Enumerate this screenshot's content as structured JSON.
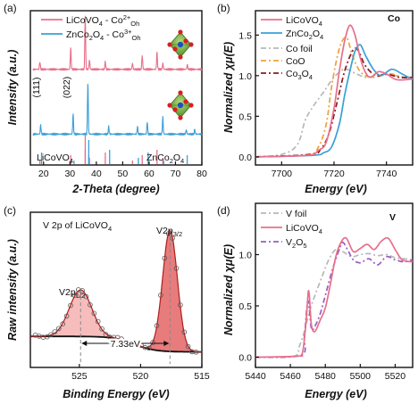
{
  "colors": {
    "pink": "#e86f8a",
    "blue": "#3a9fd8",
    "gray": "#b8b8b8",
    "orange": "#f0a03a",
    "darkred": "#8b1a1a",
    "purple": "#9a5cc0",
    "pink_fill": "#f4a7a7",
    "peak_fill": "#e05050"
  },
  "chart_data": [
    {
      "panel": "(a)",
      "type": "line",
      "xlabel": "2-Theta (degree)",
      "ylabel": "Intensity (a.u.)",
      "xlim": [
        15,
        80
      ],
      "xticks": [
        20,
        30,
        40,
        50,
        60,
        70,
        80
      ],
      "series": [
        {
          "name": "LiCoVO4 - Co2+Oh",
          "legend": [
            "LiCoVO",
            "4",
            " - Co",
            "2+",
            "Oh"
          ],
          "color": "#e86f8a",
          "baseline": 0.62,
          "peaks": [
            [
              18.6,
              0.05
            ],
            [
              30.3,
              0.14
            ],
            [
              35.8,
              0.35
            ],
            [
              37.4,
              0.06
            ],
            [
              43.4,
              0.05
            ],
            [
              53.7,
              0.04
            ],
            [
              57.4,
              0.09
            ],
            [
              63.0,
              0.11
            ],
            [
              65.2,
              0.04
            ],
            [
              74.5,
              0.03
            ]
          ]
        },
        {
          "name": "ZnCo2O4 - Co3+Oh",
          "legend": [
            "ZnCo",
            "2",
            "O",
            "4",
            " - Co",
            "3+",
            "Oh"
          ],
          "color": "#3a9fd8",
          "baseline": 0.2,
          "peaks": [
            [
              18.9,
              0.06
            ],
            [
              31.2,
              0.13
            ],
            [
              36.8,
              0.34
            ],
            [
              44.7,
              0.05
            ],
            [
              55.6,
              0.05
            ],
            [
              59.3,
              0.08
            ],
            [
              65.2,
              0.11
            ],
            [
              74.1,
              0.03
            ],
            [
              77.3,
              0.03
            ]
          ]
        }
      ],
      "reference_ticks": [
        {
          "label": "LiCoVO4",
          "parts": [
            "LiCoVO",
            "4"
          ],
          "color": "#e86f8a",
          "positions": [
            18.6,
            30.3,
            35.8,
            37.4,
            43.4,
            53.7,
            57.4,
            63.0,
            65.2
          ]
        },
        {
          "label": "ZnCo2O4",
          "parts": [
            "ZnCo",
            "2",
            "O",
            "4"
          ],
          "color": "#3a9fd8",
          "positions": [
            18.9,
            31.2,
            36.8,
            44.7,
            55.6,
            59.3,
            65.2,
            74.1
          ]
        }
      ],
      "annotations": [
        "(111)",
        "(022)"
      ]
    },
    {
      "panel": "(b)",
      "type": "line",
      "xlabel": "Energy (eV)",
      "ylabel": "Normalized χμ(E)",
      "xlim": [
        7690,
        7750
      ],
      "ylim": [
        -0.1,
        1.8
      ],
      "xticks": [
        7700,
        7720,
        7740
      ],
      "yticks": [
        "0.0",
        "0.5",
        "1.0",
        "1.5"
      ],
      "element_label": "Co",
      "series": [
        {
          "name": "LiCoVO4",
          "parts": [
            "LiCoVO",
            "4"
          ],
          "color": "#e86f8a",
          "dash": "",
          "x": [
            7690,
            7710,
            7714,
            7717,
            7720,
            7722,
            7724,
            7726,
            7728,
            7730,
            7732,
            7734,
            7737,
            7740,
            7744,
            7750
          ],
          "y": [
            0,
            0.02,
            0.08,
            0.18,
            0.6,
            1.05,
            1.42,
            1.62,
            1.5,
            1.22,
            1.04,
            0.98,
            1.05,
            1.02,
            0.95,
            0.96
          ]
        },
        {
          "name": "ZnCo2O4",
          "parts": [
            "ZnCo",
            "2",
            "O",
            "4"
          ],
          "color": "#3a9fd8",
          "dash": "",
          "x": [
            7690,
            7712,
            7716,
            7719,
            7722,
            7724,
            7726,
            7728,
            7730,
            7732,
            7735,
            7738,
            7742,
            7746,
            7750
          ],
          "y": [
            0,
            0.02,
            0.05,
            0.12,
            0.4,
            0.75,
            1.05,
            1.3,
            1.38,
            1.25,
            1.08,
            1.0,
            1.08,
            1.02,
            0.95
          ]
        },
        {
          "name": "Co foil",
          "parts": [
            "Co foil"
          ],
          "color": "#b8b8b8",
          "dash": "6,3,2,3",
          "x": [
            7690,
            7700,
            7706,
            7709,
            7712,
            7716,
            7720,
            7724,
            7728,
            7732,
            7736,
            7740,
            7745,
            7750
          ],
          "y": [
            0,
            0.03,
            0.15,
            0.45,
            0.62,
            0.8,
            0.98,
            1.08,
            1.03,
            0.98,
            1.0,
            1.02,
            0.99,
            0.98
          ]
        },
        {
          "name": "CoO",
          "parts": [
            "CoO"
          ],
          "color": "#f0a03a",
          "dash": "6,3,2,3",
          "x": [
            7690,
            7710,
            7714,
            7717,
            7719,
            7721,
            7723,
            7725,
            7727,
            7730,
            7734,
            7738,
            7742,
            7746,
            7750
          ],
          "y": [
            0,
            0.03,
            0.12,
            0.4,
            0.85,
            1.2,
            1.42,
            1.46,
            1.25,
            1.05,
            0.98,
            1.0,
            1.02,
            0.98,
            0.97
          ]
        },
        {
          "name": "Co3O4",
          "parts": [
            "Co",
            "3",
            "O",
            "4"
          ],
          "color": "#8b1a1a",
          "dash": "6,3,2,3",
          "x": [
            7690,
            7711,
            7715,
            7718,
            7721,
            7724,
            7727,
            7729,
            7732,
            7736,
            7740,
            7745,
            7750
          ],
          "y": [
            0,
            0.03,
            0.1,
            0.28,
            0.65,
            1.05,
            1.3,
            1.32,
            1.12,
            1.0,
            1.02,
            0.98,
            0.98
          ]
        }
      ]
    },
    {
      "panel": "(c)",
      "type": "line",
      "xlabel": "Binding Energy (eV)",
      "ylabel": "Raw intensity (a.u.)",
      "xlim": [
        529,
        515
      ],
      "xticks": [
        525,
        520,
        515
      ],
      "title_text": [
        "V 2p of LiCoVO",
        "4"
      ],
      "annotations": [
        {
          "main": "V2p",
          "sub": "1/2"
        },
        {
          "main": "V2p",
          "sub": "3/2"
        },
        {
          "text": "7.33eV"
        }
      ],
      "peaks": [
        {
          "center": 524.9,
          "height": 0.3,
          "width": 1.3
        },
        {
          "center": 517.6,
          "height": 0.78,
          "width": 0.85
        }
      ],
      "background": {
        "start": 0.2,
        "end": 0.1
      }
    },
    {
      "panel": "(d)",
      "type": "line",
      "xlabel": "Energy (eV)",
      "ylabel": "Normalized χμ(E)",
      "xlim": [
        5440,
        5530
      ],
      "ylim": [
        -0.1,
        1.5
      ],
      "xticks": [
        5440,
        5460,
        5480,
        5500,
        5520
      ],
      "yticks": [
        "0.0",
        "0.5",
        "1.0"
      ],
      "element_label": "V",
      "series": [
        {
          "name": "V foil",
          "parts": [
            "V foil"
          ],
          "color": "#b8b8b8",
          "dash": "6,3,2,3",
          "x": [
            5440,
            5462,
            5465,
            5468,
            5471,
            5474,
            5478,
            5482,
            5486,
            5490,
            5495,
            5500,
            5505,
            5510,
            5515,
            5520,
            5525,
            5530
          ],
          "y": [
            0,
            0.01,
            0.1,
            0.25,
            0.45,
            0.6,
            0.78,
            0.95,
            1.05,
            1.03,
            0.98,
            1.0,
            1.01,
            0.99,
            1.0,
            0.97,
            0.96,
            0.95
          ]
        },
        {
          "name": "LiCoVO4",
          "parts": [
            "LiCoVO",
            "4"
          ],
          "color": "#e86f8a",
          "dash": "",
          "x": [
            5440,
            5464,
            5467,
            5469,
            5470.5,
            5472,
            5474,
            5477,
            5480,
            5483,
            5486,
            5489,
            5492,
            5496,
            5500,
            5504,
            5508,
            5512,
            5516,
            5520,
            5524,
            5530
          ],
          "y": [
            0,
            0.01,
            0.05,
            0.35,
            0.65,
            0.32,
            0.25,
            0.36,
            0.48,
            0.72,
            0.98,
            1.12,
            1.16,
            1.03,
            1.06,
            1.1,
            1.05,
            1.13,
            1.16,
            1.05,
            0.95,
            0.93
          ]
        },
        {
          "name": "V2O5",
          "parts": [
            "V",
            "2",
            "O",
            "5"
          ],
          "color": "#9a5cc0",
          "dash": "6,3,2,3",
          "x": [
            5440,
            5466,
            5468,
            5470,
            5472,
            5474,
            5477,
            5480,
            5484,
            5488,
            5490,
            5493,
            5496,
            5500,
            5505,
            5510,
            5515,
            5520,
            5525,
            5530
          ],
          "y": [
            0,
            0.02,
            0.2,
            0.55,
            0.28,
            0.3,
            0.42,
            0.6,
            0.85,
            1.05,
            1.12,
            1.04,
            0.95,
            0.92,
            0.96,
            0.9,
            0.98,
            0.95,
            0.93,
            0.95
          ]
        }
      ]
    }
  ]
}
